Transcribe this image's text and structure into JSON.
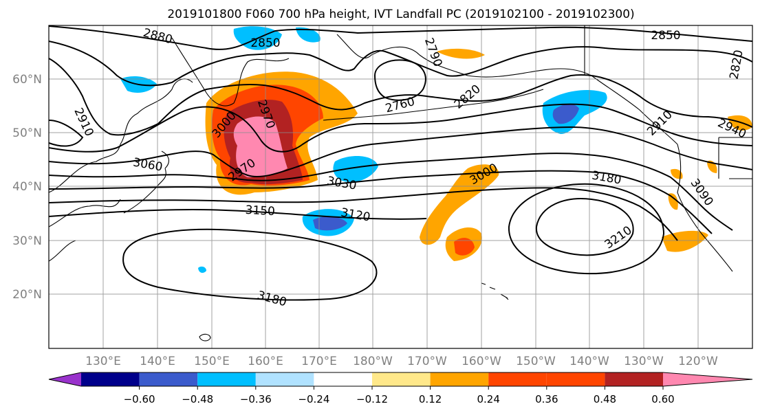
{
  "title": "2019101800 F060 700 hPa height, IVT Landfall PC (2019102100 - 2019102300)",
  "lat_ticks": [
    "60°N",
    "50°N",
    "40°N",
    "30°N",
    "20°N"
  ],
  "lon_ticks": [
    "130°E",
    "140°E",
    "150°E",
    "160°E",
    "170°E",
    "180°W",
    "170°W",
    "160°W",
    "150°W",
    "140°W",
    "130°W",
    "120°W"
  ],
  "contour_labels": [
    "2880",
    "2850",
    "2910",
    "2790",
    "2850",
    "2820",
    "2760",
    "2820",
    "2910",
    "2940",
    "3000",
    "2970",
    "2970",
    "3060",
    "3030",
    "3000",
    "3180",
    "3090",
    "3150",
    "3120",
    "3210",
    "3180"
  ],
  "colorbar": {
    "ticks": [
      "−0.60",
      "−0.48",
      "−0.36",
      "−0.24",
      "−0.12",
      "0.12",
      "0.24",
      "0.36",
      "0.48",
      "0.60"
    ],
    "colors": [
      "#9932cc",
      "#00008b",
      "#3b5bcc",
      "#00bfff",
      "#b0e2ff",
      "#ffffff",
      "#ffe88a",
      "#ffa500",
      "#ff4500",
      "#b22222",
      "#ff88b0"
    ]
  }
}
